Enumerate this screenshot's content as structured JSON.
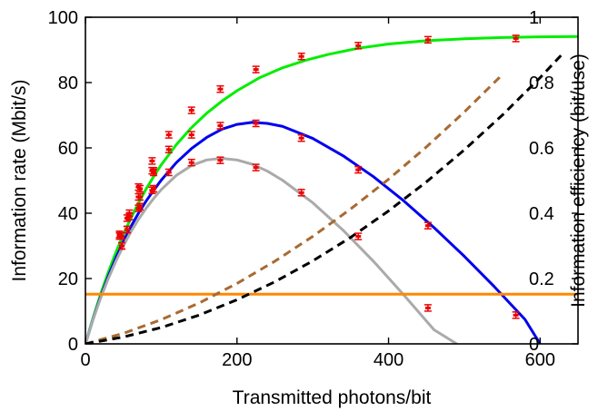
{
  "chart_data": {
    "type": "line",
    "xlabel": "Transmitted photons/bit",
    "ylabel": "Information rate (Mbit/s)",
    "ylabel_right": "Information efficiency (bit/use)",
    "xlim": [
      0,
      650
    ],
    "ylim": [
      0,
      100
    ],
    "ylim_right": [
      0,
      1
    ],
    "x_ticks": [
      0,
      200,
      400,
      600
    ],
    "y_ticks": [
      0,
      20,
      40,
      60,
      80,
      100
    ],
    "y_ticks_right": [
      0,
      0.2,
      0.4,
      0.6,
      0.8,
      1
    ],
    "x_tick_labels": [
      "0",
      "200",
      "400",
      "600"
    ],
    "y_tick_labels": [
      "0",
      "20",
      "40",
      "60",
      "80",
      "100"
    ],
    "y_tick_labels_right": [
      "0",
      "0.2",
      "0.4",
      "0.6",
      "0.8",
      "1"
    ],
    "grid": false,
    "series": [
      {
        "color": "#00ee00",
        "style": "solid",
        "axis": "left",
        "x": [
          0,
          10,
          20,
          30,
          40,
          50,
          60,
          70,
          80,
          90,
          100,
          120,
          140,
          160,
          180,
          200,
          230,
          260,
          290,
          320,
          360,
          400,
          450,
          500,
          550,
          600,
          650
        ],
        "y": [
          0,
          7.9,
          15.2,
          21.8,
          27.9,
          33.4,
          38.5,
          43.1,
          47.4,
          51.2,
          54.8,
          61,
          66.2,
          70.6,
          74.3,
          77.5,
          81.5,
          84.5,
          86.8,
          88.6,
          90.5,
          91.8,
          92.8,
          93.4,
          93.8,
          94,
          94.1
        ]
      },
      {
        "color": "#0000ee",
        "style": "solid",
        "axis": "left",
        "x": [
          0,
          10,
          20,
          30,
          40,
          50,
          60,
          70,
          80,
          90,
          100,
          120,
          140,
          160,
          180,
          200,
          220,
          240,
          260,
          300,
          340,
          380,
          420,
          460,
          500,
          540,
          580,
          600
        ],
        "y": [
          0,
          7.5,
          14.4,
          20.6,
          26.2,
          31.3,
          35.9,
          40,
          43.7,
          47,
          50.1,
          55.5,
          59.8,
          63.2,
          65.7,
          67.2,
          67.8,
          67.5,
          66.6,
          62.9,
          57.6,
          51.2,
          43.8,
          35.6,
          26.8,
          17.4,
          7.5,
          0
        ]
      },
      {
        "color": "#aaaaaa",
        "style": "solid",
        "axis": "left",
        "x": [
          0,
          10,
          20,
          30,
          40,
          50,
          60,
          70,
          80,
          90,
          100,
          120,
          140,
          160,
          180,
          200,
          220,
          240,
          260,
          300,
          340,
          380,
          420,
          460,
          490
        ],
        "y": [
          0,
          7.4,
          14,
          19.9,
          25.2,
          30,
          34.3,
          38.1,
          41.5,
          44.5,
          47.2,
          51.6,
          54.6,
          56.3,
          56.8,
          56.3,
          55,
          52.9,
          50.1,
          43.2,
          34.8,
          25.3,
          15,
          4.3,
          0
        ]
      },
      {
        "color": "#ff8800",
        "style": "solid",
        "axis": "left",
        "x": [
          0,
          650
        ],
        "y": [
          15.2,
          15.2
        ]
      },
      {
        "color": "#a86a32",
        "style": "dashed",
        "axis": "left",
        "x": [
          0,
          50,
          100,
          150,
          200,
          250,
          300,
          350,
          400,
          450,
          500,
          550
        ],
        "y": [
          0,
          3.2,
          7.4,
          12.5,
          18.5,
          25.3,
          32.9,
          41.3,
          50.4,
          60.3,
          71,
          82.4
        ]
      },
      {
        "color": "#000000",
        "style": "dashed",
        "axis": "left",
        "x": [
          0,
          50,
          100,
          150,
          200,
          250,
          300,
          350,
          400,
          450,
          500,
          550,
          600,
          630
        ],
        "y": [
          0,
          2.1,
          5,
          8.8,
          13.5,
          19,
          25.4,
          32.6,
          40.7,
          49.6,
          59.4,
          70,
          81.5,
          88.9
        ]
      },
      {
        "marker": "errorbar",
        "color": "#ee0000",
        "axis": "left",
        "x": [
          45,
          48,
          55,
          58,
          70,
          72,
          88,
          90,
          110,
          140,
          178,
          225,
          285,
          360,
          452,
          568
        ],
        "y": [
          33.5,
          33,
          38.5,
          40,
          48,
          47.5,
          56,
          53,
          64,
          71.5,
          78,
          84,
          88,
          91.3,
          93.1,
          93.5
        ]
      },
      {
        "marker": "errorbar",
        "color": "#ee0000",
        "axis": "left",
        "x": [
          45,
          48,
          55,
          58,
          70,
          72,
          88,
          90,
          110,
          140,
          178,
          225,
          285,
          360,
          452,
          568
        ],
        "y": [
          33,
          30,
          35,
          39,
          45,
          42,
          53,
          47.5,
          59.5,
          64,
          66.8,
          67.5,
          63,
          53.3,
          36.2,
          8.8
        ]
      },
      {
        "marker": "errorbar",
        "color": "#ee0000",
        "axis": "left",
        "x": [
          45,
          48,
          55,
          58,
          70,
          72,
          88,
          90,
          110,
          140,
          178,
          225,
          285,
          360,
          452
        ],
        "y": [
          33.5,
          30,
          35,
          39,
          41.5,
          45,
          47,
          52.5,
          52.5,
          55.5,
          56.2,
          54,
          46.3,
          32.9,
          11
        ]
      }
    ]
  }
}
